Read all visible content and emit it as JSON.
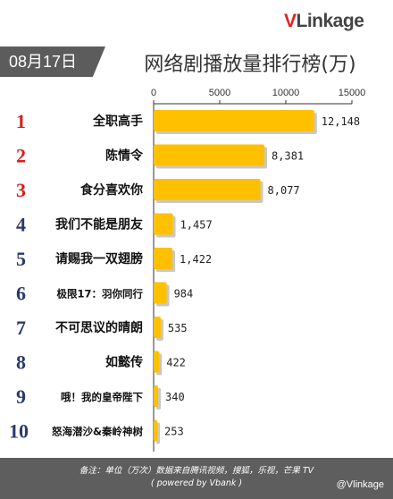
{
  "header": {
    "date_label": "08月17日",
    "logo_v": "V",
    "logo_rest": "Linkage",
    "title": "网络剧播放量排行榜(万)"
  },
  "footer": {
    "note_line1": "备注：单位（万次）数据来自腾讯视频，搜狐，乐视，芒果 TV",
    "note_line2": "( powered by Vbank )",
    "watermark": "@Vlinkage"
  },
  "colors": {
    "bar": "#ffc000",
    "bar_shadow": "#c8c8c8",
    "rank_top": "#d81e1e",
    "rank_other": "#2b3a6b",
    "header_bg": "#5c5c5c"
  },
  "chart_data": {
    "type": "bar",
    "orientation": "horizontal",
    "xlim": [
      0,
      15000
    ],
    "xticks": [
      0,
      5000,
      10000,
      15000
    ],
    "xtick_labels": [
      "0",
      "5000",
      "10000",
      "15000"
    ],
    "ranks": [
      "1",
      "2",
      "3",
      "4",
      "5",
      "6",
      "7",
      "8",
      "9",
      "10"
    ],
    "categories": [
      "全职高手",
      "陈情令",
      "食分喜欢你",
      "我们不能是朋友",
      "请赐我一双翅膀",
      "极限17：羽你同行",
      "不可思议的晴朗",
      "如懿传",
      "哦！我的皇帝陛下",
      "怒海潜沙&秦岭神树"
    ],
    "values": [
      12148,
      8381,
      8077,
      1457,
      1422,
      984,
      535,
      422,
      340,
      253
    ],
    "value_labels": [
      "12,148",
      "8,381",
      "8,077",
      "1,457",
      "1,422",
      "984",
      "535",
      "422",
      "340",
      "253"
    ]
  }
}
